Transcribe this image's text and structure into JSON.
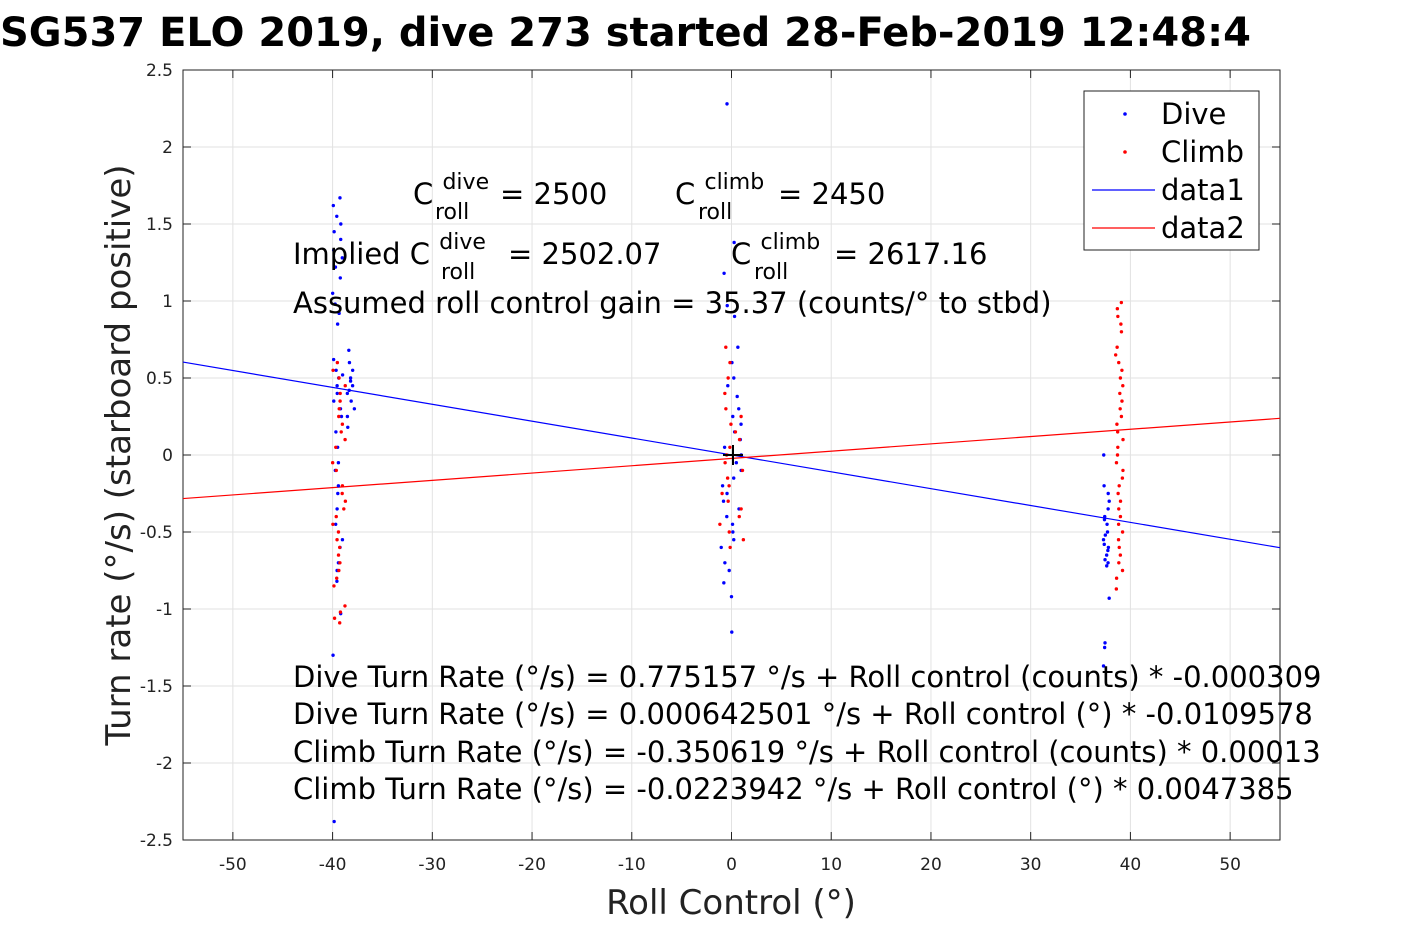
{
  "chart_data": {
    "type": "scatter",
    "title": "SG537 ELO 2019, dive 273 started 28-Feb-2019 12:48:4",
    "xlabel": "Roll Control (°)",
    "ylabel": "Turn rate (°/s) (starboard positive)",
    "xlim": [
      -55,
      55
    ],
    "ylim": [
      -2.5,
      2.5
    ],
    "xticks": [
      -50,
      -40,
      -30,
      -20,
      -10,
      0,
      10,
      20,
      30,
      40,
      50
    ],
    "xtick_labels": [
      "-50",
      "-40",
      "-30",
      "-20",
      "-10",
      "0",
      "10",
      "20",
      "30",
      "40",
      "50"
    ],
    "yticks": [
      2.5,
      2,
      1.5,
      1,
      0.5,
      0,
      -0.5,
      -1,
      -1.5,
      -2,
      -2.5
    ],
    "ytick_labels": [
      "2.5",
      "2",
      "1.5",
      "1",
      "0.5",
      "0",
      "-0.5",
      "-1",
      "-1.5",
      "-2",
      "-2.5"
    ],
    "grid": true,
    "legend_position": "top-right",
    "legend": [
      {
        "label": "Dive",
        "kind": "marker",
        "color": "#0000ff"
      },
      {
        "label": "Climb",
        "kind": "marker",
        "color": "#ff0000"
      },
      {
        "label": "data1",
        "kind": "line",
        "color": "#0000ff"
      },
      {
        "label": "data2",
        "kind": "line",
        "color": "#ff0000"
      }
    ],
    "lines": [
      {
        "name": "data1",
        "color": "#0000ff",
        "x": [
          -55,
          55
        ],
        "y": [
          0.6033,
          -0.602
        ]
      },
      {
        "name": "data2",
        "color": "#ff0000",
        "x": [
          -55,
          55
        ],
        "y": [
          -0.283,
          0.2382
        ]
      }
    ],
    "series": [
      {
        "name": "Dive",
        "color": "#0000ff",
        "clusters": [
          {
            "x_range": [
              -40.0,
              -39.0
            ],
            "y_values": [
              1.67,
              1.62,
              1.55,
              1.5,
              1.45,
              1.4,
              1.33,
              1.28,
              1.22,
              1.15,
              1.05,
              0.98,
              0.92,
              0.85,
              0.62,
              0.55,
              0.5,
              0.45,
              0.4,
              0.35,
              0.3,
              0.25,
              0.15,
              0.05,
              -0.05,
              -0.1,
              -0.2,
              -0.25,
              -0.35,
              -0.45,
              -0.55,
              -0.6,
              -0.7,
              -0.75,
              -0.82,
              -1.03,
              -1.3,
              -2.38
            ]
          },
          {
            "x_range": [
              -39.0,
              -37.8
            ],
            "y_values": [
              0.68,
              0.6,
              0.55,
              0.52,
              0.5,
              0.48,
              0.45,
              0.42,
              0.4,
              0.35,
              0.3,
              0.25,
              0.18
            ]
          },
          {
            "x_range": [
              -1.2,
              1.0
            ],
            "y_values": [
              2.28,
              1.38,
              1.18,
              0.97,
              0.9,
              0.7,
              0.6,
              0.5,
              0.45,
              0.38,
              0.3,
              0.25,
              0.2,
              0.15,
              0.1,
              0.05,
              0.0,
              -0.05,
              -0.1,
              -0.15,
              -0.2,
              -0.25,
              -0.3,
              -0.35,
              -0.4,
              -0.45,
              -0.5,
              -0.55,
              -0.6,
              -0.7,
              -0.75,
              -0.83,
              -0.92,
              -1.15
            ]
          },
          {
            "x_range": [
              37.3,
              37.9
            ],
            "y_values": [
              0.0,
              -0.2,
              -0.25,
              -0.3,
              -0.35,
              -0.4,
              -0.42,
              -0.45,
              -0.5,
              -0.52,
              -0.55,
              -0.58,
              -0.6,
              -0.62,
              -0.65,
              -0.68,
              -0.7,
              -0.72,
              -0.93,
              -1.22,
              -1.25,
              -1.37
            ]
          }
        ]
      },
      {
        "name": "Climb",
        "color": "#ff0000",
        "clusters": [
          {
            "x_range": [
              -40.0,
              -38.7
            ],
            "y_values": [
              0.6,
              0.55,
              0.5,
              0.45,
              0.4,
              0.35,
              0.3,
              0.25,
              0.2,
              0.15,
              0.1,
              0.05,
              -0.05,
              -0.1,
              -0.2,
              -0.25,
              -0.3,
              -0.35,
              -0.4,
              -0.45,
              -0.5,
              -0.55,
              -0.6,
              -0.65,
              -0.7,
              -0.75,
              -0.8,
              -0.85,
              -0.98,
              -1.02,
              -1.06,
              -1.09
            ]
          },
          {
            "x_range": [
              -1.2,
              1.2
            ],
            "y_values": [
              0.7,
              0.6,
              0.5,
              0.4,
              0.3,
              0.25,
              0.2,
              0.15,
              0.1,
              0.05,
              0.0,
              -0.05,
              -0.1,
              -0.15,
              -0.2,
              -0.25,
              -0.3,
              -0.35,
              -0.4,
              -0.45,
              -0.5,
              -0.55,
              -0.6
            ]
          },
          {
            "x_range": [
              38.5,
              39.3
            ],
            "y_values": [
              0.99,
              0.95,
              0.9,
              0.85,
              0.8,
              0.7,
              0.65,
              0.6,
              0.55,
              0.5,
              0.45,
              0.4,
              0.35,
              0.3,
              0.25,
              0.2,
              0.15,
              0.1,
              0.05,
              0.0,
              -0.05,
              -0.1,
              -0.15,
              -0.2,
              -0.25,
              -0.3,
              -0.35,
              -0.4,
              -0.45,
              -0.5,
              -0.55,
              -0.6,
              -0.65,
              -0.7,
              -0.75,
              -0.8,
              -0.87
            ]
          }
        ]
      }
    ],
    "annotations": {
      "c_roll_dive_set": {
        "base": "C",
        "sup": "dive",
        "sub": "roll",
        "value": "= 2500"
      },
      "c_roll_climb_set": {
        "base": "C",
        "sup": "climb",
        "sub": "roll",
        "value": "= 2450"
      },
      "implied_prefix": "Implied C",
      "implied_dive": {
        "sup": "dive",
        "sub": "roll",
        "value": "= 2502.07"
      },
      "implied_climb": {
        "base": "C",
        "sup": "climb",
        "sub": "roll",
        "value": "= 2617.16"
      },
      "gain": "Assumed roll control gain = 35.37 (counts/° to stbd)",
      "fit_lines": [
        "Dive Turn Rate (°/s) = 0.775157 °/s + Roll control (counts) * -0.000309",
        "Dive Turn Rate (°/s) = 0.000642501 °/s + Roll control (°) * -0.0109578",
        "Climb Turn Rate (°/s) = -0.350619 °/s + Roll control (counts) * 0.00013",
        "Climb Turn Rate (°/s) = -0.0223942 °/s + Roll control (°) * 0.0047385"
      ]
    }
  }
}
